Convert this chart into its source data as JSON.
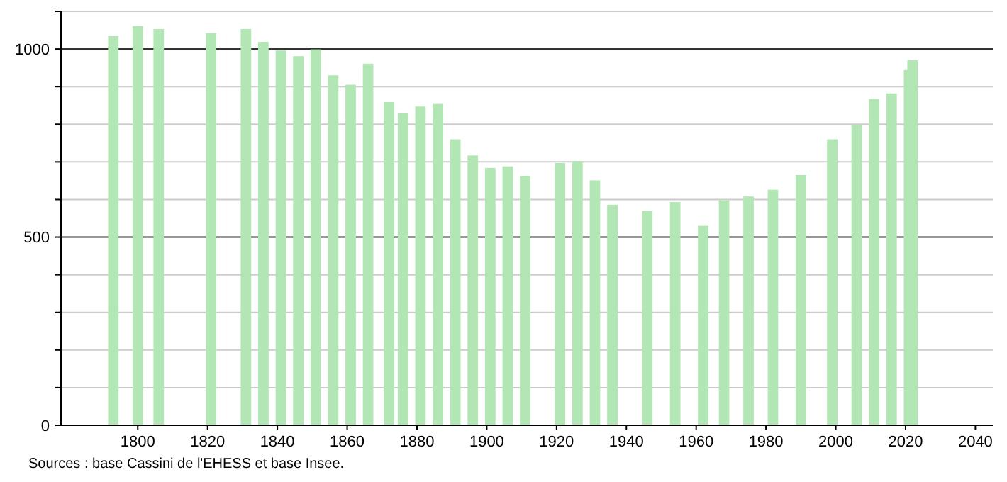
{
  "chart_data": {
    "type": "bar",
    "color": "#b3e6b5",
    "x": [
      1793,
      1800,
      1806,
      1821,
      1831,
      1836,
      1841,
      1846,
      1851,
      1856,
      1861,
      1866,
      1872,
      1876,
      1881,
      1886,
      1891,
      1896,
      1901,
      1906,
      1911,
      1921,
      1926,
      1931,
      1936,
      1946,
      1954,
      1962,
      1968,
      1975,
      1982,
      1990,
      1999,
      2006,
      2011,
      2016,
      2021,
      2022
    ],
    "values": [
      1034,
      1061,
      1053,
      1042,
      1053,
      1019,
      996,
      981,
      999,
      930,
      905,
      961,
      859,
      829,
      847,
      854,
      760,
      717,
      684,
      688,
      662,
      697,
      702,
      651,
      586,
      570,
      593,
      530,
      598,
      608,
      626,
      665,
      760,
      798,
      867,
      882,
      944,
      970
    ],
    "xlim": [
      1778,
      2045
    ],
    "xticks": [
      1800,
      1820,
      1840,
      1860,
      1880,
      1900,
      1920,
      1940,
      1960,
      1980,
      2000,
      2020,
      2040
    ],
    "ylim": [
      0,
      1100
    ],
    "yticks": [
      0,
      {
        "value": 100,
        "label": null
      },
      {
        "value": 200,
        "label": null
      },
      {
        "value": 300,
        "label": null
      },
      {
        "value": 400,
        "label": null
      },
      500,
      {
        "value": 600,
        "label": null
      },
      {
        "value": 700,
        "label": null
      },
      {
        "value": 800,
        "label": null
      },
      {
        "value": 900,
        "label": null
      },
      1000,
      {
        "value": 1100,
        "label": null
      }
    ],
    "grid": "y",
    "annotations": [
      "Sources : base Cassini de l'EHESS et base Insee."
    ]
  }
}
